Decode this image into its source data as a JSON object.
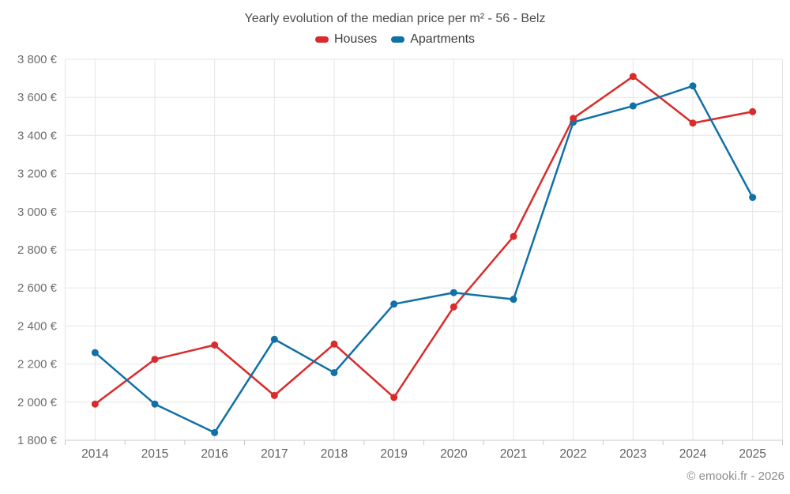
{
  "title": "Yearly evolution of the median price per m² - 56 - Belz",
  "footer": "© emooki.fr - 2026",
  "chart_data": {
    "type": "line",
    "title": "Yearly evolution of the median price per m² - 56 - Belz",
    "categories": [
      "2014",
      "2015",
      "2016",
      "2017",
      "2018",
      "2019",
      "2020",
      "2021",
      "2022",
      "2023",
      "2024",
      "2025"
    ],
    "series": [
      {
        "name": "Houses",
        "color": "#d92b2b",
        "values": [
          1990,
          2225,
          2300,
          2035,
          2305,
          2025,
          2500,
          2870,
          3490,
          3710,
          3465,
          3525
        ]
      },
      {
        "name": "Apartments",
        "color": "#1070a8",
        "values": [
          2260,
          1990,
          1840,
          2330,
          2155,
          2515,
          2575,
          2540,
          3470,
          3555,
          3660,
          3075
        ]
      }
    ],
    "xlabel": "",
    "ylabel": "",
    "ylim": [
      1800,
      3800
    ],
    "ytick_values": [
      1800,
      2000,
      2200,
      2400,
      2600,
      2800,
      3000,
      3200,
      3400,
      3600,
      3800
    ],
    "ytick_labels": [
      "1 800 €",
      "2 000 €",
      "2 200 €",
      "2 400 €",
      "2 600 €",
      "2 800 €",
      "3 000 €",
      "3 200 €",
      "3 400 €",
      "3 600 €",
      "3 800 €"
    ],
    "grid": true,
    "legend_position": "top",
    "colors": {
      "gridline": "#e6e6e6",
      "axis_line": "#c9c9c9",
      "tick_label": "#6e6e6e",
      "title_text": "#4d4d4d",
      "footer_text": "#8c8c8c"
    }
  }
}
